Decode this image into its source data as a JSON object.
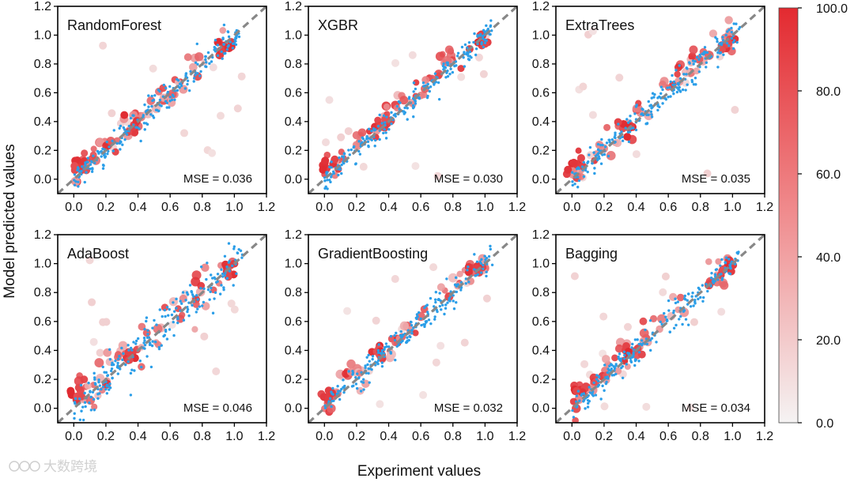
{
  "chart_data": {
    "type": "scatter",
    "xlabel": "Experiment values",
    "ylabel": "Model predicted values",
    "xlim": [
      -0.1,
      1.2
    ],
    "ylim": [
      -0.1,
      1.2
    ],
    "ticks": [
      "0.0",
      "0.2",
      "0.4",
      "0.6",
      "0.8",
      "1.0",
      "1.2"
    ],
    "diagonal": "dashed gray y = x",
    "colors": {
      "train_points": "#2b9ee8",
      "test_high": "#e0282e",
      "test_low": "#f4eded",
      "diagonal": "#888888"
    },
    "colorbar": {
      "range": [
        0.0,
        100.0
      ],
      "tick_labels": [
        "100.0",
        "80.0",
        "60.0",
        "40.0",
        "20.0",
        "0.0"
      ],
      "colors": [
        "#e32a30",
        "#f3f0f0"
      ]
    },
    "panels": [
      {
        "name": "RandomForest",
        "mse_label": "MSE = 0.036"
      },
      {
        "name": "XGBR",
        "mse_label": "MSE = 0.030"
      },
      {
        "name": "ExtraTrees",
        "mse_label": "MSE = 0.035"
      },
      {
        "name": "AdaBoost",
        "mse_label": "MSE = 0.046"
      },
      {
        "name": "GradientBoosting",
        "mse_label": "MSE = 0.032"
      },
      {
        "name": "Bagging",
        "mse_label": "MSE = 0.034"
      }
    ]
  },
  "watermark": "大数跨境"
}
